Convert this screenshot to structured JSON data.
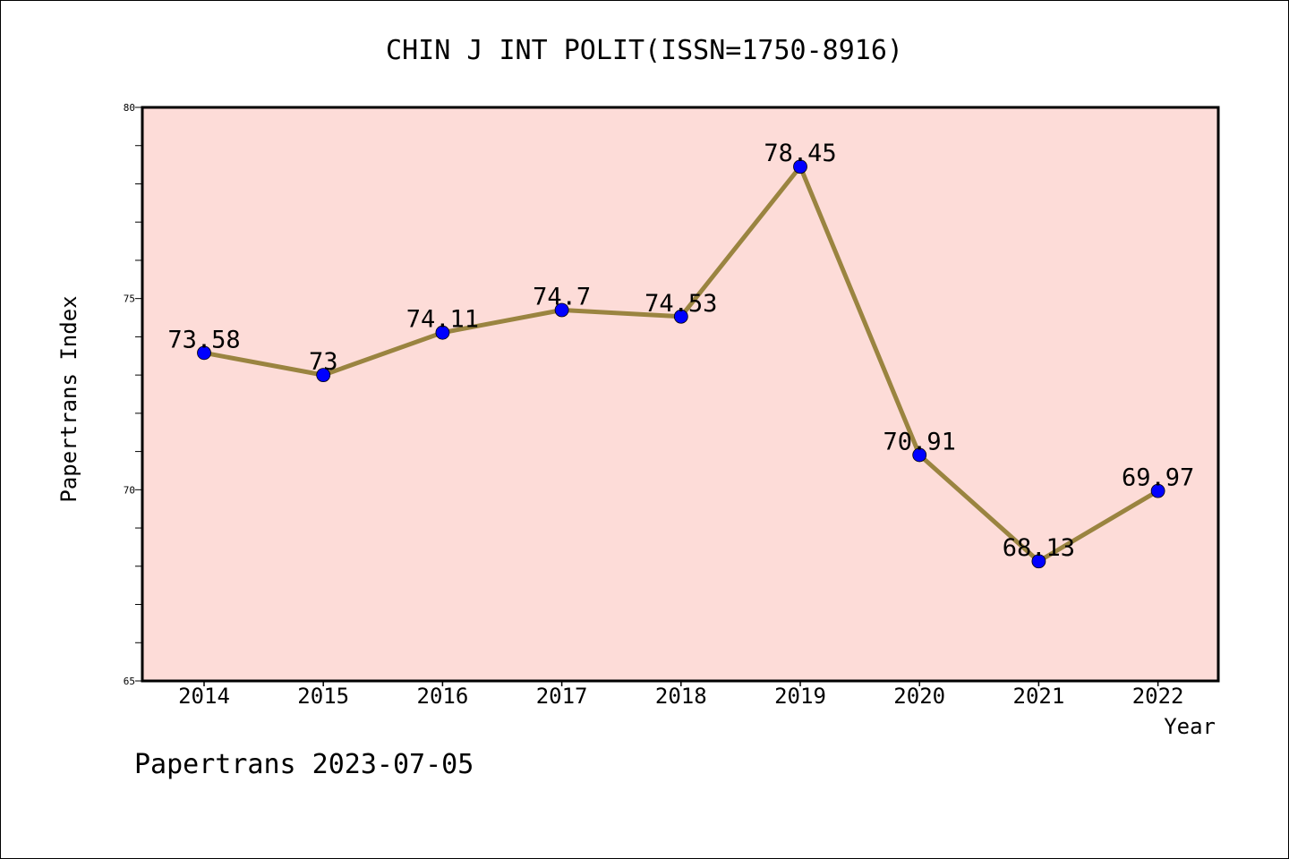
{
  "chart_data": {
    "type": "line",
    "title": "CHIN J INT POLIT(ISSN=1750-8916)",
    "xlabel": "Year",
    "ylabel": "Papertrans Index",
    "categories": [
      "2014",
      "2015",
      "2016",
      "2017",
      "2018",
      "2019",
      "2020",
      "2021",
      "2022"
    ],
    "series": [
      {
        "values": [
          73.58,
          73,
          74.11,
          74.7,
          74.53,
          78.45,
          70.91,
          68.13,
          69.97
        ],
        "labels": [
          "73.58",
          "73",
          "74.11",
          "74.7",
          "74.53",
          "78.45",
          "70.91",
          "68.13",
          "69.97"
        ]
      }
    ],
    "ylim": [
      65,
      80
    ],
    "y_ticks": [
      "65",
      "70",
      "75",
      "80"
    ],
    "grid": false,
    "line_color": "#9a8440",
    "marker_color": "#0000ff",
    "plot_background": "#fddcd8"
  },
  "footer": {
    "text": "Papertrans 2023-07-05"
  }
}
